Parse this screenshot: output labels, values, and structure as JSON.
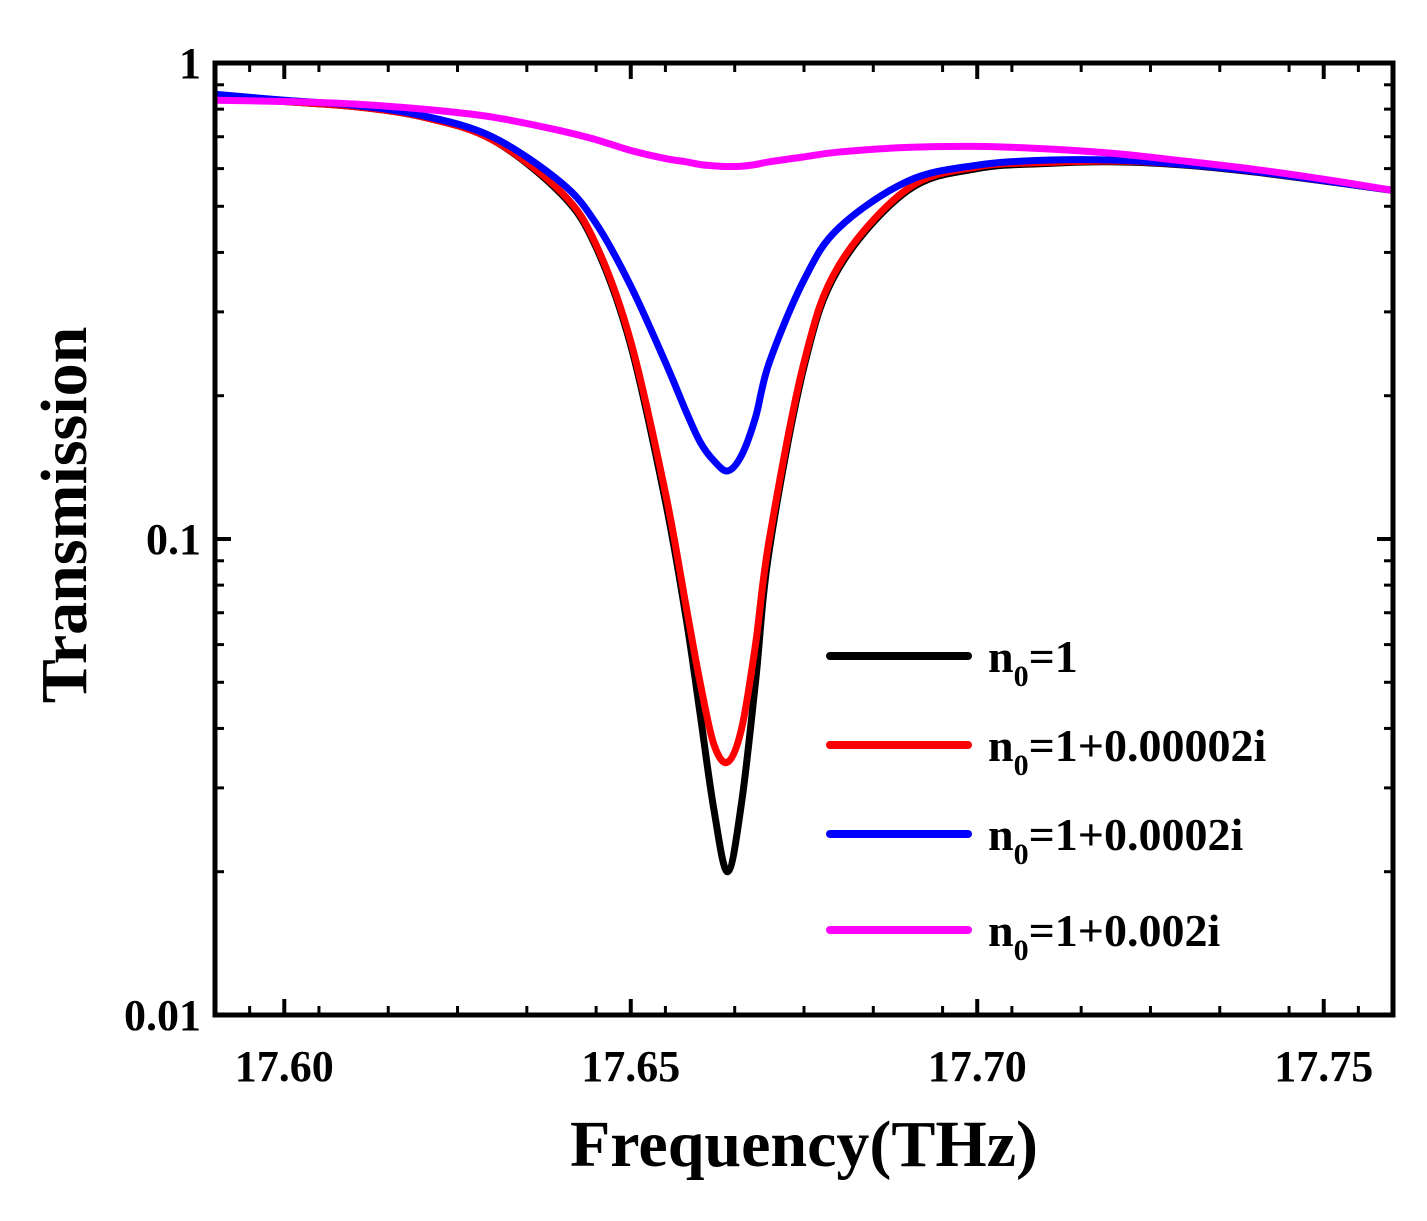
{
  "chart_data": {
    "type": "line",
    "title": "",
    "xlabel": "Frequency(THz)",
    "ylabel": "Transmission",
    "xlim": [
      17.59,
      17.76
    ],
    "ylim": [
      0.01,
      1
    ],
    "y_scale": "log",
    "x_ticks": [
      {
        "value": 17.6,
        "label": "17.60"
      },
      {
        "value": 17.65,
        "label": "17.65"
      },
      {
        "value": 17.7,
        "label": "17.70"
      },
      {
        "value": 17.75,
        "label": "17.75"
      }
    ],
    "y_ticks": [
      {
        "value": 0.01,
        "label": "0.01"
      },
      {
        "value": 0.1,
        "label": "0.1"
      },
      {
        "value": 1,
        "label": "1"
      }
    ],
    "grid": false,
    "legend_position": "bottom-right",
    "x": [
      17.59,
      17.6,
      17.61,
      17.62,
      17.63,
      17.64,
      17.645,
      17.65,
      17.655,
      17.658,
      17.66,
      17.662,
      17.664,
      17.666,
      17.668,
      17.67,
      17.675,
      17.68,
      17.69,
      17.7,
      17.71,
      17.72,
      17.73,
      17.74,
      17.75,
      17.76
    ],
    "series": [
      {
        "name_main": "n",
        "name_sub": "0",
        "name_rest": "=1",
        "color": "#000000",
        "values": [
          0.85,
          0.83,
          0.81,
          0.77,
          0.69,
          0.53,
          0.41,
          0.255,
          0.12,
          0.068,
          0.043,
          0.027,
          0.02,
          0.028,
          0.05,
          0.095,
          0.23,
          0.37,
          0.54,
          0.6,
          0.615,
          0.62,
          0.61,
          0.59,
          0.565,
          0.54
        ]
      },
      {
        "name_main": "n",
        "name_sub": "0",
        "name_rest": "=1+0.00002i",
        "color": "#ff0000",
        "values": [
          0.85,
          0.83,
          0.81,
          0.77,
          0.69,
          0.535,
          0.415,
          0.26,
          0.125,
          0.072,
          0.05,
          0.037,
          0.034,
          0.04,
          0.06,
          0.1,
          0.235,
          0.375,
          0.545,
          0.605,
          0.618,
          0.622,
          0.612,
          0.592,
          0.566,
          0.54
        ]
      },
      {
        "name_main": "n",
        "name_sub": "0",
        "name_rest": "=1+0.0002i",
        "color": "#0000ff",
        "values": [
          0.86,
          0.835,
          0.815,
          0.775,
          0.7,
          0.56,
          0.46,
          0.34,
          0.235,
          0.185,
          0.16,
          0.146,
          0.139,
          0.15,
          0.18,
          0.235,
          0.35,
          0.45,
          0.565,
          0.61,
          0.625,
          0.625,
          0.612,
          0.592,
          0.566,
          0.54
        ]
      },
      {
        "name_main": "n",
        "name_sub": "0",
        "name_rest": "=1+0.002i",
        "color": "#ff00ff",
        "values": [
          0.835,
          0.83,
          0.82,
          0.8,
          0.77,
          0.72,
          0.69,
          0.655,
          0.63,
          0.62,
          0.612,
          0.608,
          0.606,
          0.607,
          0.612,
          0.62,
          0.635,
          0.65,
          0.665,
          0.668,
          0.66,
          0.645,
          0.622,
          0.598,
          0.57,
          0.54
        ]
      }
    ]
  }
}
